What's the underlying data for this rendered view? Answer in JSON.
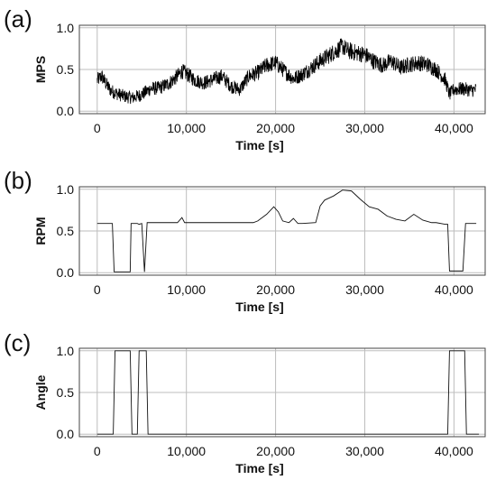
{
  "chart_data": [
    {
      "panel_label": "(a)",
      "type": "line",
      "title": "",
      "xlabel": "Time [s]",
      "ylabel": "MPS",
      "xlim": [
        -2000,
        43500
      ],
      "ylim": [
        -0.03,
        1.03
      ],
      "xticks": [
        0,
        10000,
        20000,
        30000,
        40000
      ],
      "xtick_labels": [
        "0",
        "10,000",
        "20,000",
        "30,000",
        "40,000"
      ],
      "yticks": [
        0.0,
        0.5,
        1.0
      ],
      "ytick_labels": [
        "0.0",
        "0.5",
        "1.0"
      ],
      "grid": true,
      "noisy": true,
      "series": [
        {
          "x": [
            0,
            500,
            1000,
            1500,
            2000,
            3000,
            4000,
            5000,
            6000,
            7000,
            8000,
            9000,
            9500,
            10000,
            11000,
            12000,
            13000,
            14000,
            15000,
            16000,
            17000,
            18000,
            19000,
            20000,
            21000,
            22000,
            23000,
            24000,
            25000,
            26000,
            27000,
            27500,
            28000,
            29000,
            30000,
            31000,
            32000,
            33000,
            34000,
            35000,
            36000,
            37000,
            38000,
            39000,
            39500,
            40000,
            41000,
            42000,
            42500
          ],
          "y": [
            0.37,
            0.42,
            0.33,
            0.25,
            0.22,
            0.18,
            0.16,
            0.2,
            0.27,
            0.28,
            0.33,
            0.42,
            0.48,
            0.45,
            0.37,
            0.34,
            0.38,
            0.42,
            0.3,
            0.26,
            0.42,
            0.46,
            0.55,
            0.58,
            0.48,
            0.39,
            0.44,
            0.52,
            0.6,
            0.67,
            0.74,
            0.78,
            0.73,
            0.7,
            0.68,
            0.6,
            0.55,
            0.6,
            0.52,
            0.56,
            0.58,
            0.56,
            0.5,
            0.38,
            0.2,
            0.26,
            0.27,
            0.25,
            0.26
          ]
        }
      ]
    },
    {
      "panel_label": "(b)",
      "type": "line",
      "title": "",
      "xlabel": "Time [s]",
      "ylabel": "RPM",
      "xlim": [
        -2000,
        43500
      ],
      "ylim": [
        -0.03,
        1.03
      ],
      "xticks": [
        0,
        10000,
        20000,
        30000,
        40000
      ],
      "xtick_labels": [
        "0",
        "10,000",
        "20,000",
        "30,000",
        "40,000"
      ],
      "yticks": [
        0.0,
        0.5,
        1.0
      ],
      "ytick_labels": [
        "0.0",
        "0.5",
        "1.0"
      ],
      "grid": true,
      "noisy": false,
      "series": [
        {
          "x": [
            0,
            1700,
            1900,
            3700,
            3800,
            4500,
            4700,
            5000,
            5300,
            5600,
            9000,
            9500,
            9800,
            17500,
            18000,
            19000,
            19800,
            20300,
            20800,
            21500,
            22000,
            22500,
            23000,
            24500,
            25000,
            25500,
            26500,
            27500,
            28500,
            29500,
            30500,
            31500,
            32500,
            33500,
            34500,
            35500,
            36500,
            37500,
            38000,
            39000,
            39300,
            39500,
            41000,
            41300,
            42500
          ],
          "y": [
            0.59,
            0.59,
            0.01,
            0.01,
            0.59,
            0.59,
            0.58,
            0.59,
            0.01,
            0.6,
            0.6,
            0.66,
            0.6,
            0.6,
            0.62,
            0.7,
            0.79,
            0.73,
            0.62,
            0.6,
            0.65,
            0.59,
            0.59,
            0.6,
            0.8,
            0.87,
            0.92,
            0.99,
            0.98,
            0.88,
            0.79,
            0.76,
            0.68,
            0.64,
            0.62,
            0.7,
            0.63,
            0.6,
            0.6,
            0.58,
            0.58,
            0.02,
            0.02,
            0.59,
            0.59
          ]
        }
      ]
    },
    {
      "panel_label": "(c)",
      "type": "line",
      "title": "",
      "xlabel": "Time [s]",
      "ylabel": "Angle",
      "xlim": [
        -2000,
        43500
      ],
      "ylim": [
        -0.03,
        1.03
      ],
      "xticks": [
        0,
        10000,
        20000,
        30000,
        40000
      ],
      "xtick_labels": [
        "0",
        "10,000",
        "20,000",
        "30,000",
        "40,000"
      ],
      "yticks": [
        0.0,
        0.5,
        1.0
      ],
      "ytick_labels": [
        "0.0",
        "0.5",
        "1.0"
      ],
      "grid": true,
      "noisy": false,
      "series": [
        {
          "x": [
            0,
            1800,
            2000,
            3700,
            3900,
            4500,
            4700,
            5500,
            5700,
            39300,
            39500,
            41200,
            41400,
            42800
          ],
          "y": [
            0,
            0,
            1,
            1,
            0,
            0,
            1,
            1,
            0,
            0,
            1,
            1,
            0,
            0
          ]
        }
      ]
    }
  ]
}
